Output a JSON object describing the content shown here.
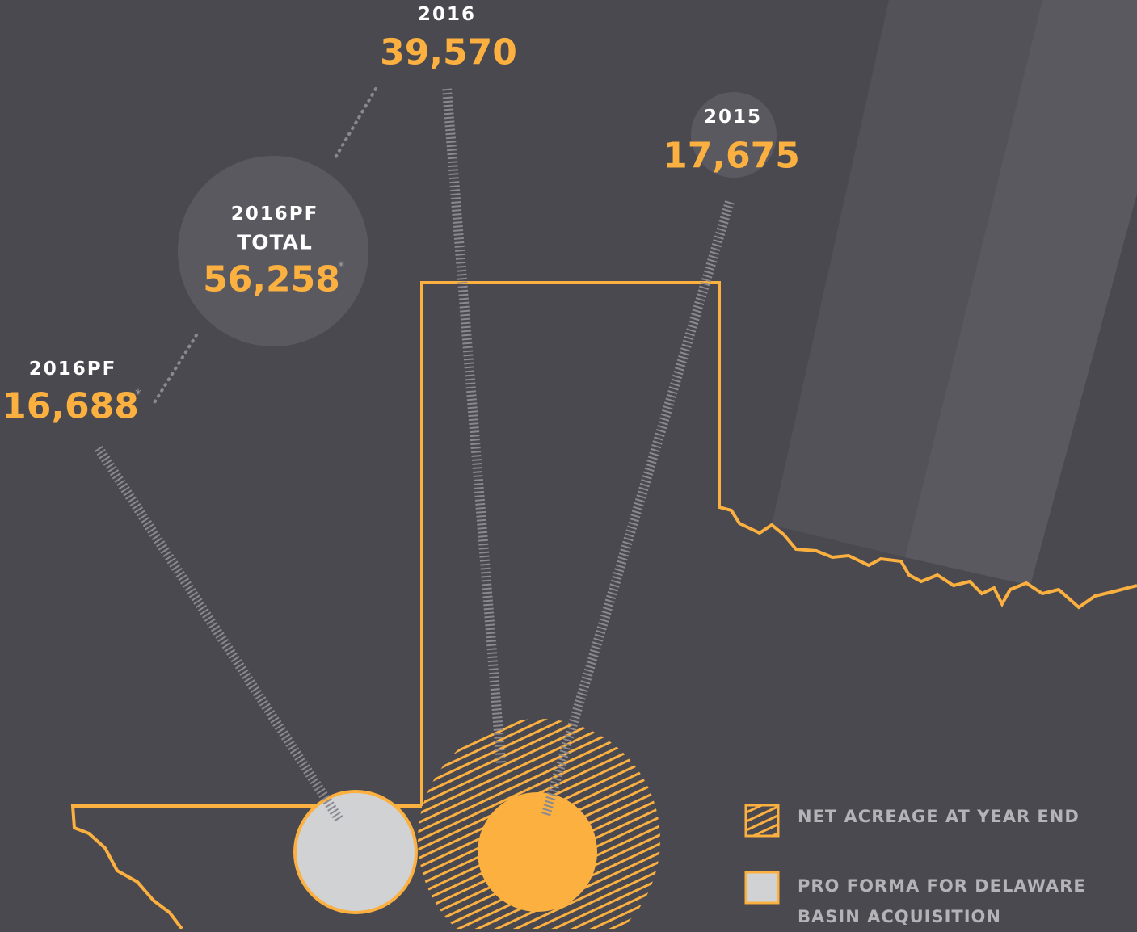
{
  "labels": [
    {
      "year": "2016",
      "value": "39,570"
    },
    {
      "year": "2015",
      "value": "17,675"
    },
    {
      "year": "2016PF",
      "value": "16,688",
      "note": "*"
    }
  ],
  "total": {
    "year": "2016PF",
    "caption": "TOTAL",
    "value": "56,258",
    "note": "*"
  },
  "legend": [
    "NET ACREAGE AT YEAR END",
    "PRO FORMA FOR DELAWARE BASIN ACQUISITION"
  ]
}
